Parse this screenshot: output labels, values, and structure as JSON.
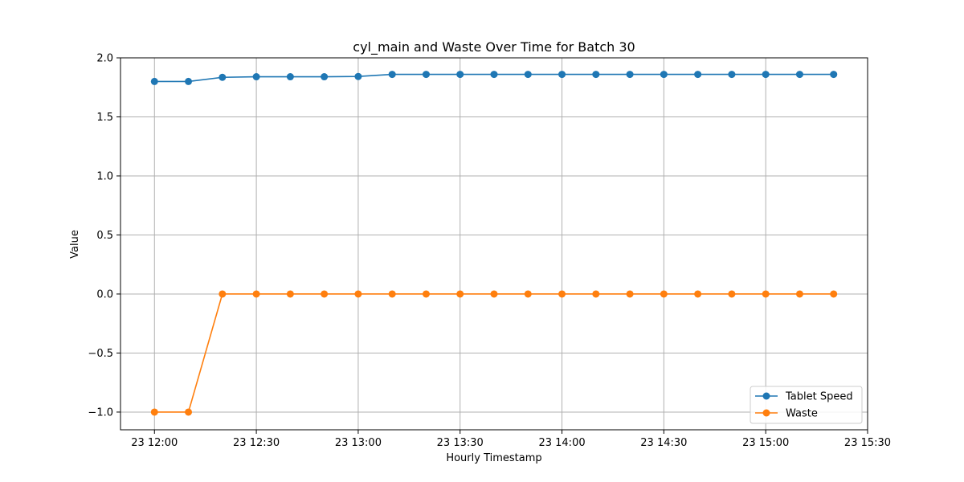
{
  "chart_data": {
    "type": "line",
    "title": "cyl_main and Waste Over Time for Batch 30",
    "xlabel": "Hourly Timestamp",
    "ylabel": "Value",
    "x": [
      "12:00",
      "12:10",
      "12:20",
      "12:30",
      "12:40",
      "12:50",
      "13:00",
      "13:10",
      "13:20",
      "13:30",
      "13:40",
      "13:50",
      "14:00",
      "14:10",
      "14:20",
      "14:30",
      "14:40",
      "14:50",
      "15:00",
      "15:10",
      "15:20"
    ],
    "x_ticks": [
      "23 12:00",
      "23 12:30",
      "23 13:00",
      "23 13:30",
      "23 14:00",
      "23 14:30",
      "23 15:00",
      "23 15:30"
    ],
    "y_ticks": [
      "2.0",
      "1.5",
      "1.0",
      "0.5",
      "0.0",
      "−0.5",
      "−1.0"
    ],
    "ylim": [
      -1.15,
      2.0
    ],
    "grid": true,
    "legend_position": "lower-right",
    "series": [
      {
        "name": "Tablet Speed",
        "color": "#1f77b4",
        "values": [
          1.8,
          1.8,
          1.835,
          1.84,
          1.84,
          1.84,
          1.842,
          1.86,
          1.86,
          1.86,
          1.86,
          1.86,
          1.86,
          1.86,
          1.86,
          1.86,
          1.86,
          1.86,
          1.86,
          1.86,
          1.86
        ]
      },
      {
        "name": "Waste",
        "color": "#ff7f0e",
        "values": [
          -1.0,
          -1.0,
          0.0,
          0.0,
          0.0,
          0.0,
          0.0,
          0.0,
          0.0,
          0.0,
          0.0,
          0.0,
          0.0,
          0.0,
          0.0,
          0.0,
          0.0,
          0.0,
          0.0,
          0.0,
          0.0
        ]
      }
    ]
  }
}
